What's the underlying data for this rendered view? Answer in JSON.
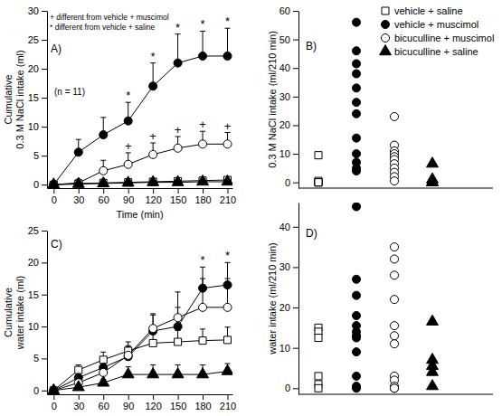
{
  "chart_data": [
    {
      "type": "line",
      "panel_label": "A)",
      "xlabel": "Time (min)",
      "ylabel": [
        "Cumulative",
        "0.3 M NaCl intake (ml)"
      ],
      "annotations": [
        "+ different from vehicle + muscimol",
        "* different from vehicle + saline",
        "(n = 11)"
      ],
      "legend": "top-right",
      "x": [
        0,
        30,
        60,
        90,
        120,
        150,
        180,
        210
      ],
      "xlim": [
        -8,
        216
      ],
      "xticks": [
        0,
        30,
        60,
        90,
        120,
        150,
        180,
        210
      ],
      "ylim": [
        -0.6,
        30
      ],
      "yticks": [
        0,
        5,
        10,
        15,
        20,
        25,
        30
      ],
      "series": [
        {
          "name": "vehicle + saline",
          "color": "#000000",
          "marker": "open-square",
          "values": [
            0,
            0.2,
            0.3,
            0.4,
            0.5,
            0.6,
            0.7,
            0.8
          ],
          "errors": [
            0,
            0.2,
            0.2,
            0.3,
            0.3,
            0.4,
            0.4,
            0.5
          ]
        },
        {
          "name": "vehicle + muscimol",
          "color": "#000000",
          "marker": "circle",
          "values": [
            0,
            5.6,
            8.6,
            11,
            17,
            21,
            22.2,
            22.2
          ],
          "errors": [
            0,
            2.2,
            3,
            3.2,
            4,
            5,
            4.3,
            4.8
          ],
          "significance": [
            null,
            null,
            null,
            "*",
            "*",
            "*",
            "*",
            "*"
          ]
        },
        {
          "name": "bicuculline + muscimol",
          "color": "#000000",
          "marker": "open-circle",
          "values": [
            0,
            0.3,
            2.4,
            3.5,
            5.2,
            6.3,
            7,
            7
          ],
          "errors": [
            0,
            0.3,
            1.8,
            2,
            2,
            2,
            2.2,
            2
          ],
          "significance": [
            null,
            null,
            null,
            "+",
            "+",
            "+",
            "+",
            "+"
          ]
        },
        {
          "name": "bicuculline + saline",
          "color": "#000000",
          "marker": "triangle",
          "values": [
            0,
            0.1,
            0.2,
            0.3,
            0.4,
            0.4,
            0.5,
            0.5
          ],
          "errors": [
            0,
            0.1,
            0.1,
            0.2,
            0.2,
            0.2,
            0.2,
            0.2
          ]
        }
      ]
    },
    {
      "type": "strip",
      "panel_label": "B)",
      "ylabel": "0.3 M NaCl intake (ml/210 min)",
      "tick_labels": "y",
      "ylim": [
        -2,
        60
      ],
      "yticks": [
        0,
        10,
        20,
        30,
        40,
        50,
        60
      ],
      "series": [
        {
          "color": "#000000",
          "marker": "open-square",
          "values": [
            9.5,
            0.5,
            0,
            0,
            0
          ]
        },
        {
          "color": "#000000",
          "marker": "circle",
          "values": [
            56,
            46,
            41.5,
            38,
            33,
            28,
            24,
            15.5,
            10,
            7,
            5,
            4
          ]
        },
        {
          "color": "#000000",
          "marker": "open-circle",
          "values": [
            23,
            13,
            11,
            10,
            9,
            8,
            6.5,
            5,
            3.5,
            2,
            0.5
          ]
        },
        {
          "color": "#000000",
          "marker": "triangle",
          "values": [
            6.5,
            1,
            0,
            0
          ]
        }
      ]
    },
    {
      "type": "line",
      "panel_label": "C)",
      "ylabel": [
        "Cumulative",
        "water intake (ml)"
      ],
      "x": [
        0,
        30,
        60,
        90,
        120,
        150,
        180,
        210
      ],
      "xlim": [
        -8,
        216
      ],
      "xticks": [
        0,
        30,
        60,
        90,
        120,
        150,
        180,
        210
      ],
      "ylim": [
        -0.6,
        25
      ],
      "yticks": [
        0,
        5,
        10,
        15,
        20,
        25
      ],
      "series": [
        {
          "color": "#000000",
          "marker": "open-square",
          "values": [
            0,
            3.2,
            4.8,
            6.2,
            7.4,
            7.6,
            7.8,
            7.9
          ],
          "errors": [
            0,
            0.8,
            1.2,
            1.4,
            1.8,
            1.8,
            1.8,
            2
          ]
        },
        {
          "color": "#000000",
          "marker": "circle",
          "values": [
            0,
            2,
            3.6,
            5.3,
            9.3,
            10,
            16,
            16.5
          ],
          "errors": [
            0,
            0.8,
            1.3,
            1.5,
            2.5,
            3,
            3.3,
            3.5
          ],
          "significance": [
            null,
            null,
            null,
            null,
            null,
            null,
            "*",
            "*"
          ]
        },
        {
          "color": "#000000",
          "marker": "open-circle",
          "values": [
            0,
            1.2,
            2.8,
            5.5,
            9.7,
            11.4,
            13,
            13
          ],
          "errors": [
            0,
            0.5,
            1.2,
            1.5,
            2.3,
            4,
            4.5,
            4.5
          ]
        },
        {
          "color": "#000000",
          "marker": "triangle",
          "values": [
            0,
            0.5,
            1.2,
            2.5,
            2.5,
            2.5,
            2.5,
            3
          ],
          "errors": [
            0,
            0.3,
            0.5,
            1.2,
            1.5,
            1.5,
            1.5,
            1.2
          ]
        }
      ]
    },
    {
      "type": "strip",
      "panel_label": "D)",
      "ylabel": "water intake (ml/210 min)",
      "tick_labels": "y",
      "ylim": [
        -1.5,
        46
      ],
      "yticks": [
        0,
        10,
        20,
        30,
        40
      ],
      "series": [
        {
          "color": "#000000",
          "marker": "open-square",
          "values": [
            15,
            14,
            12.5,
            3,
            1,
            0
          ]
        },
        {
          "color": "#000000",
          "marker": "circle",
          "values": [
            45,
            27,
            23,
            18,
            15.5,
            14,
            13,
            12.5,
            9,
            3,
            0.5,
            0
          ]
        },
        {
          "color": "#000000",
          "marker": "open-circle",
          "values": [
            35,
            32,
            28,
            22,
            15.5,
            13,
            11,
            3,
            2,
            0.5,
            0,
            0
          ]
        },
        {
          "color": "#000000",
          "marker": "triangle",
          "values": [
            16.5,
            7,
            5.5,
            4,
            0.5
          ]
        }
      ]
    }
  ]
}
